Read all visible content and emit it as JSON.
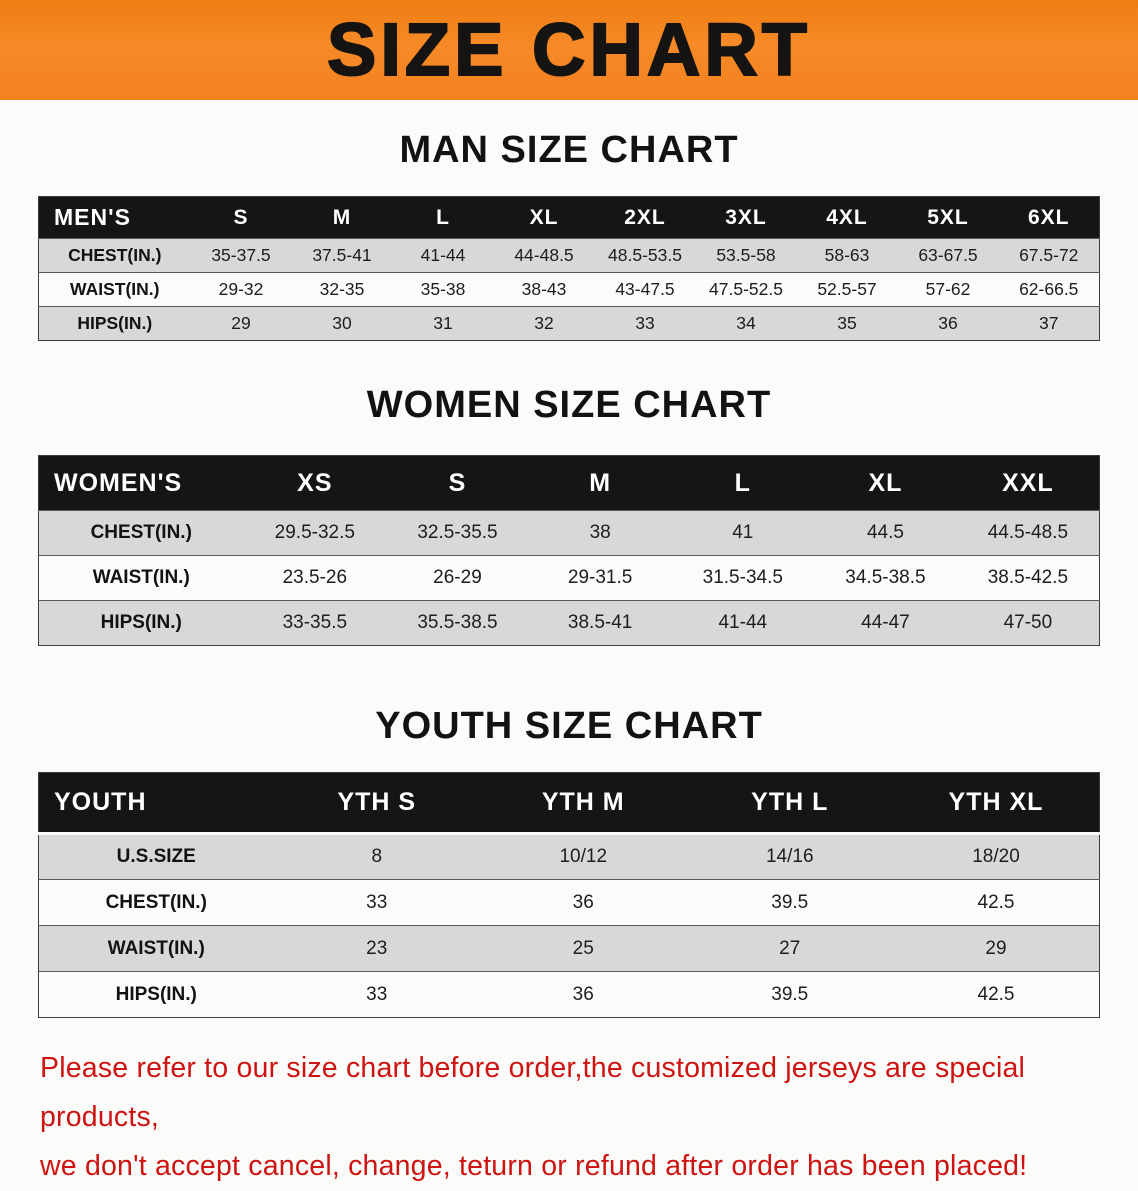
{
  "banner": {
    "title": "SIZE CHART"
  },
  "colors": {
    "banner_bg": "#F5831F",
    "table_header_bg": "#151515",
    "row_alt_gray": "#D8D8D8",
    "disclaimer_red": "#CE1412"
  },
  "men": {
    "heading": "MAN SIZE CHART",
    "header": [
      "MEN'S",
      "S",
      "M",
      "L",
      "XL",
      "2XL",
      "3XL",
      "4XL",
      "5XL",
      "6XL"
    ],
    "rows": [
      [
        "CHEST(IN.)",
        "35-37.5",
        "37.5-41",
        "41-44",
        "44-48.5",
        "48.5-53.5",
        "53.5-58",
        "58-63",
        "63-67.5",
        "67.5-72"
      ],
      [
        "WAIST(IN.)",
        "29-32",
        "32-35",
        "35-38",
        "38-43",
        "43-47.5",
        "47.5-52.5",
        "52.5-57",
        "57-62",
        "62-66.5"
      ],
      [
        "HIPS(IN.)",
        "29",
        "30",
        "31",
        "32",
        "33",
        "34",
        "35",
        "36",
        "37"
      ]
    ]
  },
  "women": {
    "heading": "WOMEN SIZE CHART",
    "header": [
      "WOMEN'S",
      "XS",
      "S",
      "M",
      "L",
      "XL",
      "XXL"
    ],
    "rows": [
      [
        "CHEST(IN.)",
        "29.5-32.5",
        "32.5-35.5",
        "38",
        "41",
        "44.5",
        "44.5-48.5"
      ],
      [
        "WAIST(IN.)",
        "23.5-26",
        "26-29",
        "29-31.5",
        "31.5-34.5",
        "34.5-38.5",
        "38.5-42.5"
      ],
      [
        "HIPS(IN.)",
        "33-35.5",
        "35.5-38.5",
        "38.5-41",
        "41-44",
        "44-47",
        "47-50"
      ]
    ]
  },
  "youth": {
    "heading": "YOUTH SIZE CHART",
    "header": [
      "YOUTH",
      "YTH S",
      "YTH M",
      "YTH L",
      "YTH XL"
    ],
    "rows": [
      [
        "U.S.SIZE",
        "8",
        "10/12",
        "14/16",
        "18/20"
      ],
      [
        "CHEST(IN.)",
        "33",
        "36",
        "39.5",
        "42.5"
      ],
      [
        "WAIST(IN.)",
        "23",
        "25",
        "27",
        "29"
      ],
      [
        "HIPS(IN.)",
        "33",
        "36",
        "39.5",
        "42.5"
      ]
    ]
  },
  "disclaimer": {
    "line1": "Please refer to our size chart before order,the customized jerseys are special products,",
    "line2": "we don't accept cancel, change, teturn or refund after order has been placed!"
  }
}
